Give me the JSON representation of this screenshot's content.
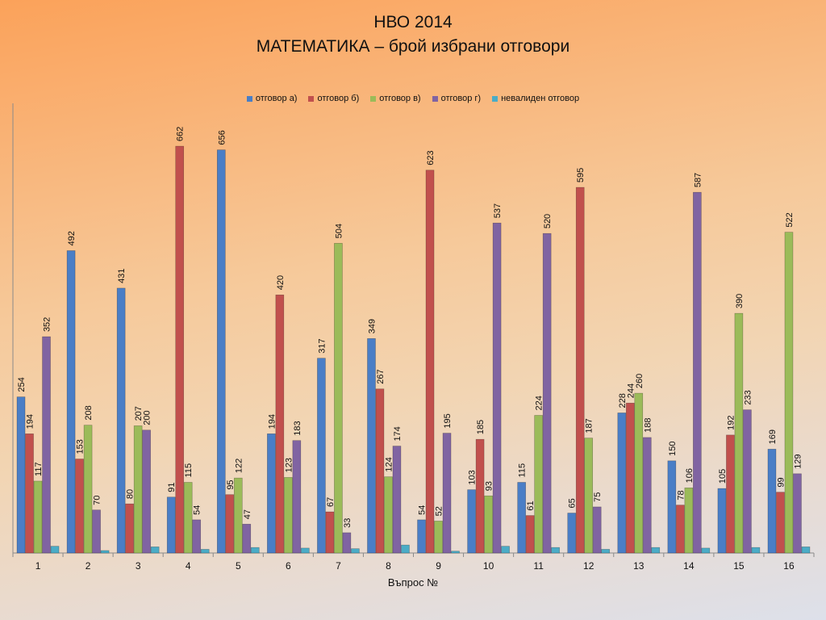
{
  "title": "НВО 2014",
  "subtitle": "МАТЕМАТИКА – брой избрани отговори",
  "colors": [
    "#4a7ec6",
    "#c1504d",
    "#9bbb59",
    "#8064a2",
    "#4bacc6"
  ],
  "chart_data": {
    "type": "bar",
    "title": "НВО 2014",
    "subtitle": "МАТЕМАТИКА – брой избрани отговори",
    "xlabel": "Въпрос №",
    "ylabel": "",
    "ylim": [
      0,
      700
    ],
    "grid": false,
    "legend": "top",
    "categories": [
      "1",
      "2",
      "3",
      "4",
      "5",
      "6",
      "7",
      "8",
      "9",
      "10",
      "11",
      "12",
      "13",
      "14",
      "15",
      "16"
    ],
    "series": [
      {
        "name": "отговор а)",
        "values": [
          254,
          492,
          431,
          91,
          656,
          194,
          317,
          349,
          54,
          103,
          115,
          65,
          228,
          150,
          105,
          169
        ],
        "labels": true
      },
      {
        "name": "отговор б)",
        "values": [
          194,
          153,
          80,
          662,
          95,
          420,
          67,
          267,
          623,
          185,
          61,
          595,
          244,
          78,
          192,
          99
        ],
        "labels": true
      },
      {
        "name": "отговор в)",
        "values": [
          117,
          208,
          207,
          115,
          122,
          123,
          504,
          124,
          52,
          93,
          224,
          187,
          260,
          106,
          390,
          522
        ],
        "labels": true
      },
      {
        "name": "отговор г)",
        "values": [
          352,
          70,
          200,
          54,
          47,
          183,
          33,
          174,
          195,
          537,
          520,
          75,
          188,
          587,
          233,
          129
        ],
        "labels": true
      },
      {
        "name": "невалиден отговор",
        "values": [
          11,
          4,
          10,
          6,
          9,
          8,
          7,
          13,
          3,
          11,
          9,
          6,
          9,
          8,
          9,
          10
        ],
        "labels": false
      }
    ]
  }
}
